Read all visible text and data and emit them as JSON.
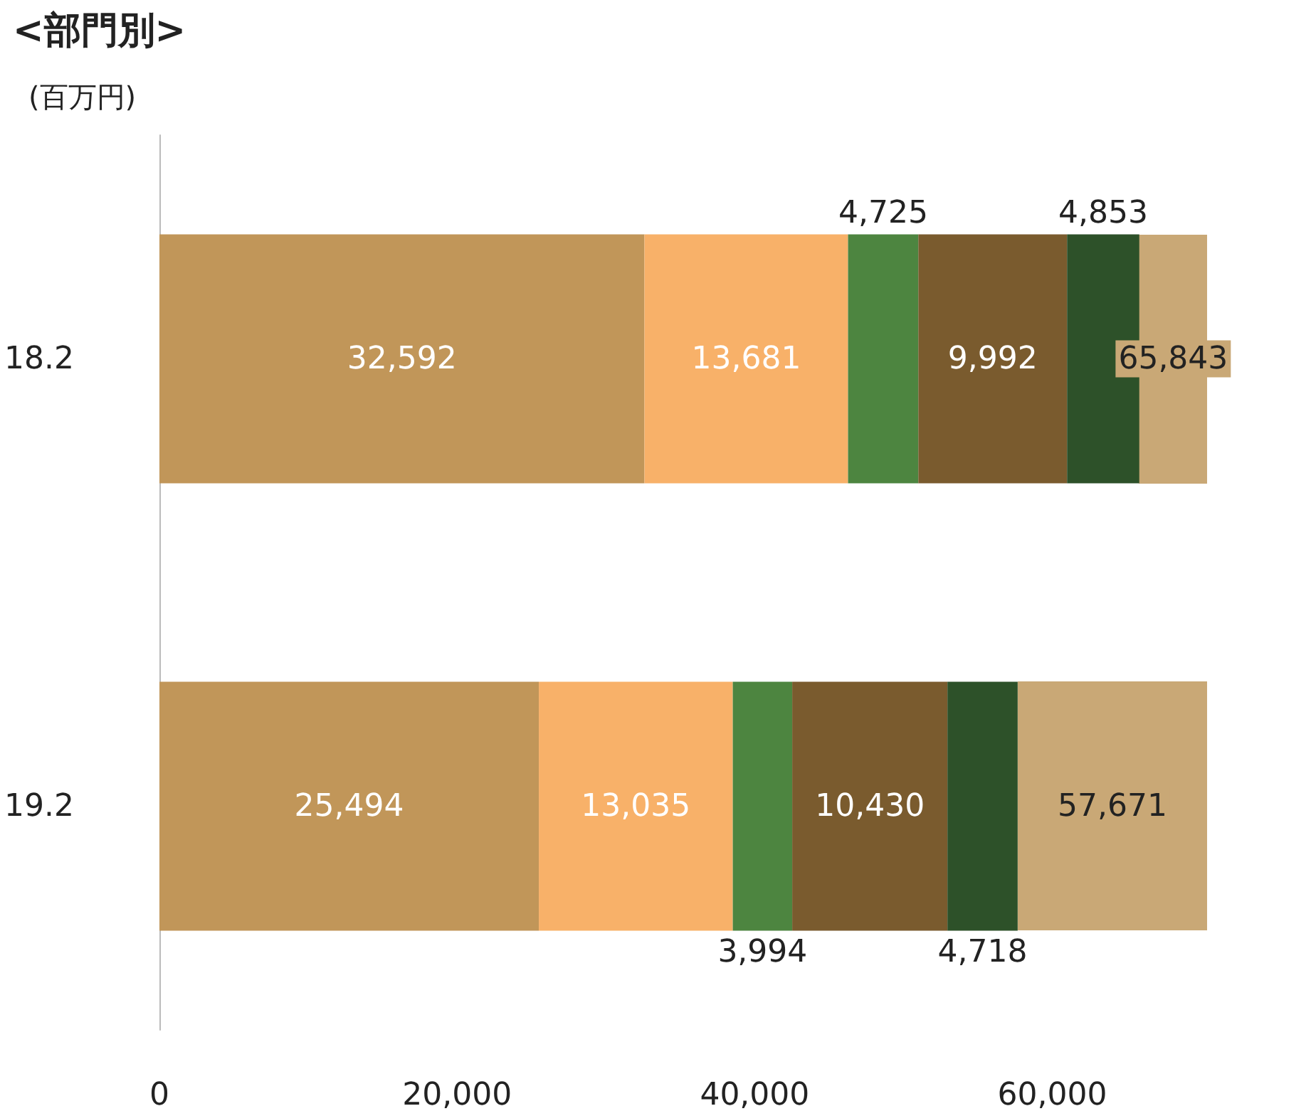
{
  "chart_data": {
    "type": "bar",
    "title": "<部門別>",
    "ylabel": "(百万円)",
    "orientation": "horizontal",
    "stacked": true,
    "categories": [
      "18.2",
      "19.2"
    ],
    "series": [
      {
        "color": "#c19659",
        "values": [
          32592,
          25494
        ],
        "value_labels": [
          "32,592",
          "25,494"
        ]
      },
      {
        "color": "#f8b169",
        "values": [
          13681,
          13035
        ],
        "value_labels": [
          "13,681",
          "13,035"
        ]
      },
      {
        "color": "#4d8540",
        "values": [
          4725,
          3994
        ],
        "value_labels": [
          "4,725",
          "3,994"
        ]
      },
      {
        "color": "#7a5b2e",
        "values": [
          9992,
          10430
        ],
        "value_labels": [
          "9,992",
          "10,430"
        ]
      },
      {
        "color": "#2d5129",
        "values": [
          4853,
          4718
        ],
        "value_labels": [
          "4,853",
          "4,718"
        ]
      }
    ],
    "totals": [
      "65,843",
      "57,671"
    ],
    "xlim": [
      0,
      70400
    ],
    "xticks": [
      {
        "value": 0,
        "label": "0"
      },
      {
        "value": 20000,
        "label": "20,000"
      },
      {
        "value": 40000,
        "label": "40,000"
      },
      {
        "value": 60000,
        "label": "60,000"
      }
    ],
    "grid": false
  }
}
